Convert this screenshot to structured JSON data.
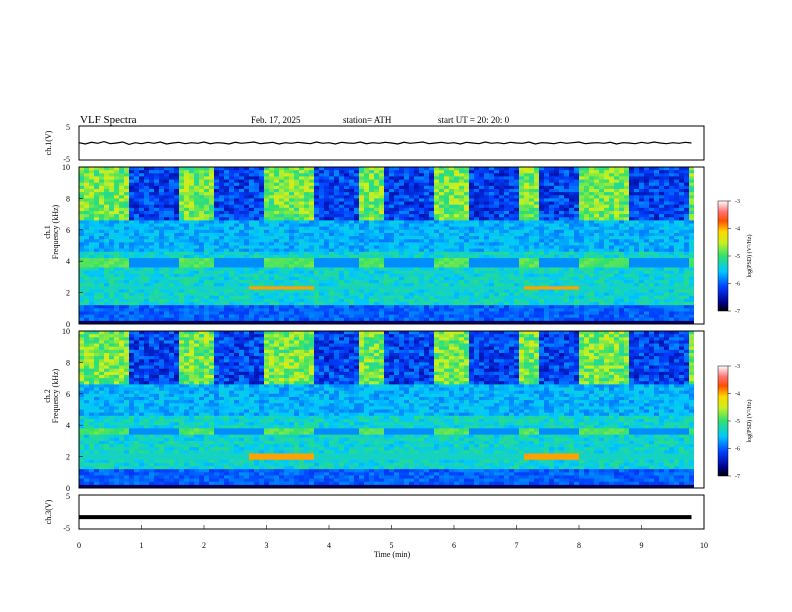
{
  "header": {
    "title": "VLF  Spectra",
    "date": "Feb. 17, 2025",
    "station": "station= ATH",
    "start_ut": "start  UT  =    20: 20: 0"
  },
  "chart_data": [
    {
      "type": "line",
      "name": "ch1-voltage",
      "ylabel": "ch.1(V)",
      "ylim": [
        -5,
        5
      ],
      "yticks": [
        "5",
        "-5"
      ],
      "xlim": [
        0,
        10
      ],
      "x_step_min": 0.1,
      "y": [
        0.1,
        -0.3,
        0.2,
        -0.1,
        0.4,
        -0.2,
        0,
        0.3,
        -0.4,
        0.1,
        -0.2,
        0.2,
        -0.1,
        0.3,
        -0.3,
        0,
        0.2,
        -0.2,
        0.1,
        -0.1,
        0.3,
        -0.2,
        0.1,
        0,
        -0.3,
        0.2,
        -0.1,
        0.1,
        0.3,
        -0.2,
        0,
        0.2,
        -0.3,
        0.1,
        -0.1,
        0.2,
        0,
        -0.2,
        0.3,
        -0.1,
        0.1,
        -0.3,
        0.2,
        0,
        -0.1,
        0.3,
        -0.2,
        0.1,
        -0.1,
        0.2,
        0,
        -0.3,
        0.2,
        -0.1,
        0.1,
        0.3,
        -0.2,
        0,
        0.2,
        -0.1,
        0.1,
        -0.3,
        0.2,
        0,
        -0.2,
        0.3,
        -0.1,
        0.1,
        -0.2,
        0.2,
        0,
        -0.1,
        0.3,
        -0.3,
        0.1,
        0,
        -0.2,
        0.2,
        -0.1,
        0.1,
        0.3,
        -0.2,
        0,
        0.1,
        -0.1,
        0.2,
        -0.3,
        0.1,
        0,
        -0.2,
        0.2,
        -0.1,
        0.3,
        0,
        -0.2,
        0.1,
        -0.1,
        0.2,
        0
      ]
    },
    {
      "type": "heatmap",
      "name": "ch1-spectrogram",
      "ylabel": "ch.1\nFrequency  (kHz)",
      "ylim": [
        0,
        10
      ],
      "yticks": [
        "0",
        "2",
        "4",
        "6",
        "8",
        "10"
      ],
      "xlim": [
        0,
        10
      ],
      "colorbar": {
        "label": "log(PSD) (V²/Hz)",
        "ticks": [
          "-3",
          "-4",
          "-5",
          "-6",
          "-7"
        ],
        "range": [
          -7,
          -3
        ]
      },
      "dark_gap_intervals_min": [
        [
          0.8,
          1.6
        ],
        [
          2.2,
          2.95
        ],
        [
          3.75,
          4.45
        ],
        [
          4.85,
          5.7
        ],
        [
          6.25,
          7.05
        ],
        [
          7.4,
          8.0
        ],
        [
          8.8,
          9.75
        ]
      ],
      "tone_band_khz": [
        3.6,
        4.3
      ],
      "highlight_band_khz": [
        2.1,
        2.4
      ],
      "highlight_intervals_min": [
        [
          2.7,
          3.75
        ],
        [
          7.1,
          8.0
        ]
      ]
    },
    {
      "type": "heatmap",
      "name": "ch2-spectrogram",
      "ylabel": "ch.2\nFrequency  (kHz)",
      "ylim": [
        0,
        10
      ],
      "yticks": [
        "0",
        "2",
        "4",
        "6",
        "8",
        "10"
      ],
      "xlim": [
        0,
        10
      ],
      "colorbar": {
        "label": "log(PSD) (V²/Hz)",
        "ticks": [
          "-3",
          "-4",
          "-5",
          "-6",
          "-7"
        ],
        "range": [
          -7,
          -3
        ]
      },
      "dark_gap_intervals_min": [
        [
          0.8,
          1.6
        ],
        [
          2.2,
          2.95
        ],
        [
          3.75,
          4.45
        ],
        [
          4.85,
          5.7
        ],
        [
          6.25,
          7.05
        ],
        [
          7.4,
          8.0
        ],
        [
          8.8,
          9.75
        ]
      ],
      "tone_band_khz": [
        3.4,
        3.9
      ],
      "highlight_band_khz": [
        1.8,
        2.1
      ],
      "highlight_intervals_min": [
        [
          2.7,
          3.75
        ],
        [
          7.1,
          8.0
        ]
      ]
    },
    {
      "type": "line",
      "name": "ch3-voltage",
      "ylabel": "ch.3(V)",
      "ylim": [
        -5,
        5
      ],
      "yticks": [
        "5",
        "-5"
      ],
      "xlim": [
        0,
        10
      ],
      "xlabel": "Time  (min)",
      "xticks": [
        "0",
        "1",
        "2",
        "3",
        "4",
        "5",
        "6",
        "7",
        "8",
        "9",
        "10"
      ],
      "constant_value": -1.5
    }
  ]
}
